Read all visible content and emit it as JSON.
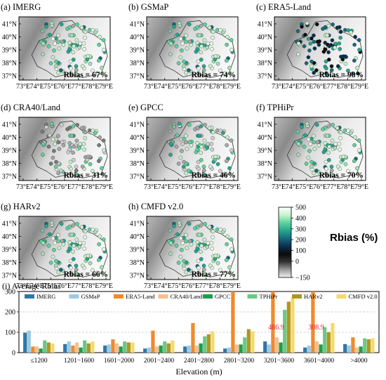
{
  "maps": {
    "lat_labels": [
      "41°N",
      "40°N",
      "39°N",
      "38°N",
      "37°N"
    ],
    "lon_labels": [
      "73°E",
      "74°E",
      "75°E",
      "76°E",
      "77°E",
      "78°E",
      "79°E"
    ],
    "panels": [
      {
        "label": "(a) IMERG",
        "rbias_text": "Rbias = 67%",
        "tone": "green",
        "rbias": 67
      },
      {
        "label": "(b) GSMaP",
        "rbias_text": "Rbias = 74%",
        "tone": "green",
        "rbias": 74
      },
      {
        "label": "(c) ERA5-Land",
        "rbias_text": "Rbias = 98%",
        "tone": "dark",
        "rbias": 98
      },
      {
        "label": "(d) CRA40/Land",
        "rbias_text": "Rbias = 31%",
        "tone": "gray",
        "rbias": 31
      },
      {
        "label": "(e) GPCC",
        "rbias_text": "Rbias = 46%",
        "tone": "mixed",
        "rbias": 46
      },
      {
        "label": "(f) TPHiPr",
        "rbias_text": "Rbias = 70%",
        "tone": "green",
        "rbias": 70
      },
      {
        "label": "(g) HARv2",
        "rbias_text": "Rbias = 66%",
        "tone": "green",
        "rbias": 66
      },
      {
        "label": "(h) CMFD v2.0",
        "rbias_text": "Rbias = 77%",
        "tone": "green",
        "rbias": 77
      }
    ]
  },
  "colorbar": {
    "title": "Rbias (%)",
    "ticks": [
      "500",
      "400",
      "300",
      "200",
      "100",
      "0",
      "−150"
    ],
    "tick_values": [
      500,
      400,
      300,
      200,
      100,
      0,
      -150
    ],
    "range": [
      -150,
      500
    ],
    "colors": [
      "#f2f2f2",
      "#9a9a9a",
      "#333333",
      "#0b0b0b",
      "#0a2f4f",
      "#15697a",
      "#25a68f",
      "#5dd39e",
      "#c9f3cc",
      "#ffffff"
    ]
  },
  "chart_data": {
    "type": "bar",
    "title": "(i) Average Rbias",
    "xlabel": "Elevation (m)",
    "ylabel": "",
    "ylim": [
      0,
      300
    ],
    "yticks": [
      0,
      100,
      200,
      300
    ],
    "grid": "horizontal",
    "legend_position": "top",
    "categories": [
      "≤1200",
      "1201−1600",
      "1601−2000",
      "2001−2400",
      "2401−2800",
      "2801−3200",
      "3201−3600",
      "3601−4000",
      ">4000"
    ],
    "series": [
      {
        "name": "IMERG",
        "color": "#2e78a8",
        "values": [
          98,
          42,
          35,
          20,
          30,
          20,
          55,
          25,
          42
        ]
      },
      {
        "name": "GSMaP",
        "color": "#9ecae1",
        "values": [
          108,
          55,
          40,
          25,
          35,
          25,
          40,
          35,
          35
        ]
      },
      {
        "name": "ERA5-Land",
        "color": "#f08a2b",
        "values": [
          30,
          35,
          65,
          108,
          145,
          300,
          300,
          300,
          75
        ]
      },
      {
        "name": "CRA40/Land",
        "color": "#f6c08e",
        "values": [
          30,
          50,
          45,
          30,
          35,
          40,
          75,
          55,
          25
        ]
      },
      {
        "name": "GPCC",
        "color": "#1a9e4b",
        "values": [
          20,
          25,
          30,
          35,
          45,
          40,
          50,
          40,
          30
        ]
      },
      {
        "name": "TPHiPr",
        "color": "#6cc985",
        "values": [
          60,
          60,
          55,
          55,
          80,
          75,
          210,
          125,
          70
        ]
      },
      {
        "name": "HARv2",
        "color": "#b09520",
        "values": [
          50,
          45,
          50,
          45,
          90,
          115,
          250,
          100,
          65
        ]
      },
      {
        "name": "CMFD v2.0",
        "color": "#f7d96a",
        "values": [
          45,
          55,
          50,
          60,
          105,
          105,
          270,
          145,
          70
        ]
      }
    ],
    "annotations": [
      {
        "text": "486.9",
        "category": "3201−3600",
        "color": "#e0202a"
      },
      {
        "text": "308.9",
        "category": "3601−4000",
        "color": "#e0202a"
      }
    ]
  }
}
